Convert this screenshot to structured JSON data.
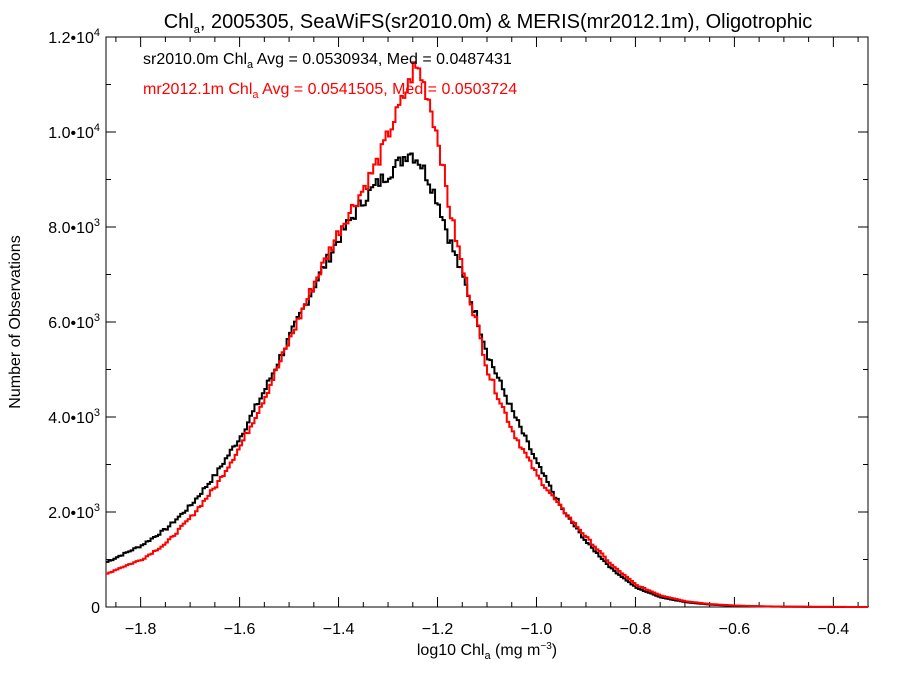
{
  "chart_data": {
    "type": "line",
    "title": {
      "before": "Chl",
      "sub": "a",
      "after": ", 2005305, SeaWiFS(sr2010.0m) & MERIS(mr2012.1m), Oligotrophic"
    },
    "xlabel": {
      "before": "log10 Chl",
      "sub": "a",
      "middle": " (mg m",
      "sup": "−3",
      "after": ")"
    },
    "ylabel": "Number of Observations",
    "xlim": [
      -1.87,
      -0.33
    ],
    "ylim": [
      0,
      12000
    ],
    "x_ticks": [
      {
        "value": -1.8,
        "label": "−1.8"
      },
      {
        "value": -1.6,
        "label": "−1.6"
      },
      {
        "value": -1.4,
        "label": "−1.4"
      },
      {
        "value": -1.2,
        "label": "−1.2"
      },
      {
        "value": -1.0,
        "label": "−1.0"
      },
      {
        "value": -0.8,
        "label": "−0.8"
      },
      {
        "value": -0.6,
        "label": "−0.6"
      },
      {
        "value": -0.4,
        "label": "−0.4"
      }
    ],
    "y_ticks": [
      {
        "value": 0,
        "label": "0"
      },
      {
        "value": 2000,
        "mantissa": "2.0•10",
        "exp": "3"
      },
      {
        "value": 4000,
        "mantissa": "4.0•10",
        "exp": "3"
      },
      {
        "value": 6000,
        "mantissa": "6.0•10",
        "exp": "3"
      },
      {
        "value": 8000,
        "mantissa": "8.0•10",
        "exp": "3"
      },
      {
        "value": 10000,
        "mantissa": "1.0•10",
        "exp": "4"
      },
      {
        "value": 12000,
        "mantissa": "1.2•10",
        "exp": "4"
      }
    ],
    "x": [
      -1.87,
      -1.85,
      -1.8,
      -1.75,
      -1.7,
      -1.65,
      -1.6,
      -1.55,
      -1.5,
      -1.45,
      -1.4,
      -1.35,
      -1.32,
      -1.3,
      -1.28,
      -1.26,
      -1.25,
      -1.24,
      -1.22,
      -1.2,
      -1.18,
      -1.15,
      -1.12,
      -1.1,
      -1.05,
      -1.0,
      -0.95,
      -0.9,
      -0.85,
      -0.8,
      -0.75,
      -0.7,
      -0.65,
      -0.6,
      -0.55,
      -0.5,
      -0.45,
      -0.4,
      -0.33
    ],
    "series": [
      {
        "name": "sr2010.0m",
        "color": "#000000",
        "values": [
          950,
          1050,
          1300,
          1650,
          2150,
          2800,
          3600,
          4600,
          5700,
          6800,
          7800,
          8600,
          8950,
          9150,
          9350,
          9600,
          9500,
          9400,
          9000,
          8500,
          7800,
          6900,
          6000,
          5300,
          4100,
          3000,
          2050,
          1350,
          800,
          400,
          200,
          100,
          50,
          25,
          12,
          6,
          3,
          1,
          0
        ]
      },
      {
        "name": "mr2012.1m",
        "color": "#ff0000",
        "values": [
          700,
          800,
          1000,
          1350,
          1900,
          2550,
          3400,
          4450,
          5650,
          6850,
          7950,
          8850,
          9450,
          10000,
          10500,
          11000,
          11350,
          11300,
          10700,
          9800,
          8500,
          7050,
          5850,
          4950,
          3700,
          2750,
          2050,
          1450,
          880,
          460,
          240,
          120,
          60,
          30,
          15,
          8,
          4,
          2,
          0
        ]
      }
    ],
    "annotations": [
      {
        "color": "#000000",
        "before": "sr2010.0m Chl",
        "sub": "a",
        "after": " Avg = 0.0530934, Med = 0.0487431"
      },
      {
        "color": "#ff0000",
        "before": "mr2012.1m Chl",
        "sub": "a",
        "after": " Avg = 0.0541505, Med = 0.0503724"
      }
    ],
    "grid": false
  }
}
